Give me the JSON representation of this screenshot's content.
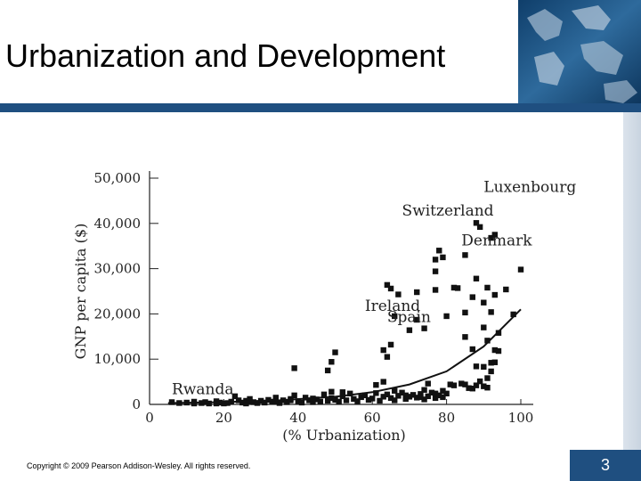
{
  "slide": {
    "title": "Urbanization and Development",
    "copyright": "Copyright © 2009 Pearson Addison-Wesley. All rights reserved.",
    "page_number": "3"
  },
  "colors": {
    "accent": "#1f4f80",
    "marker": "#111111"
  },
  "chart_data": {
    "type": "scatter",
    "title": "",
    "xlabel": "(% Urbanization)",
    "ylabel": "GNP per capita ($)",
    "xlim": [
      0,
      100
    ],
    "ylim": [
      0,
      50000
    ],
    "xticks": [
      0,
      20,
      40,
      60,
      80,
      100
    ],
    "yticks": [
      0,
      10000,
      20000,
      30000,
      40000,
      50000
    ],
    "xtick_labels": [
      "0",
      "20",
      "40",
      "60",
      "80",
      "100"
    ],
    "ytick_labels": [
      "0",
      "10,000",
      "20,000",
      "30,000",
      "40,000",
      "50,000"
    ],
    "grid": false,
    "points": [
      [
        6,
        500
      ],
      [
        8,
        300
      ],
      [
        10,
        400
      ],
      [
        12,
        600
      ],
      [
        14,
        300
      ],
      [
        15,
        500
      ],
      [
        16,
        200
      ],
      [
        18,
        700
      ],
      [
        19,
        400
      ],
      [
        21,
        300
      ],
      [
        22,
        600
      ],
      [
        23,
        1800
      ],
      [
        24,
        900
      ],
      [
        25,
        400
      ],
      [
        26,
        200
      ],
      [
        27,
        1200
      ],
      [
        28,
        500
      ],
      [
        29,
        300
      ],
      [
        30,
        800
      ],
      [
        31,
        400
      ],
      [
        32,
        1000
      ],
      [
        33,
        600
      ],
      [
        34,
        1500
      ],
      [
        35,
        300
      ],
      [
        36,
        900
      ],
      [
        37,
        500
      ],
      [
        38,
        1200
      ],
      [
        39,
        2000
      ],
      [
        40,
        700
      ],
      [
        41,
        400
      ],
      [
        42,
        1500
      ],
      [
        43,
        900
      ],
      [
        44,
        500
      ],
      [
        45,
        1100
      ],
      [
        46,
        600
      ],
      [
        47,
        2200
      ],
      [
        48,
        800
      ],
      [
        49,
        1400
      ],
      [
        50,
        1000
      ],
      [
        51,
        600
      ],
      [
        52,
        1800
      ],
      [
        53,
        900
      ],
      [
        54,
        2400
      ],
      [
        55,
        1200
      ],
      [
        56,
        700
      ],
      [
        57,
        1600
      ],
      [
        58,
        2000
      ],
      [
        59,
        1000
      ],
      [
        60,
        1300
      ],
      [
        61,
        2500
      ],
      [
        62,
        800
      ],
      [
        63,
        1700
      ],
      [
        64,
        2200
      ],
      [
        65,
        1400
      ],
      [
        66,
        900
      ],
      [
        67,
        1900
      ],
      [
        68,
        2600
      ],
      [
        69,
        1200
      ],
      [
        70,
        1700
      ],
      [
        71,
        2100
      ],
      [
        72,
        1500
      ],
      [
        73,
        2300
      ],
      [
        74,
        1100
      ],
      [
        75,
        1800
      ],
      [
        76,
        2600
      ],
      [
        77,
        1400
      ],
      [
        78,
        2000
      ],
      [
        79,
        1600
      ],
      [
        80,
        2400
      ],
      [
        81,
        4400
      ],
      [
        82,
        4200
      ],
      [
        84,
        4600
      ],
      [
        85,
        4400
      ],
      [
        87,
        3500
      ],
      [
        88,
        4200
      ],
      [
        89,
        5100
      ],
      [
        90,
        4000
      ],
      [
        91,
        5800
      ],
      [
        92,
        7300
      ],
      [
        20,
        200
      ],
      [
        12,
        200
      ],
      [
        18,
        200
      ],
      [
        26,
        800
      ],
      [
        34,
        600
      ],
      [
        44,
        1300
      ],
      [
        52,
        2700
      ],
      [
        61,
        4300
      ],
      [
        63,
        5000
      ],
      [
        66,
        3000
      ],
      [
        69,
        2000
      ],
      [
        73,
        1600
      ],
      [
        74,
        3200
      ],
      [
        75,
        4600
      ],
      [
        77,
        2400
      ],
      [
        79,
        3000
      ],
      [
        86,
        3600
      ],
      [
        88,
        8400
      ],
      [
        90,
        8300
      ],
      [
        91,
        3700
      ],
      [
        92,
        9200
      ],
      [
        93,
        12000
      ],
      [
        94,
        11800
      ],
      [
        94,
        15800
      ],
      [
        63,
        12000
      ],
      [
        64,
        10500
      ],
      [
        72,
        18700
      ],
      [
        70,
        16400
      ],
      [
        74,
        16800
      ],
      [
        80,
        19500
      ],
      [
        85,
        14900
      ],
      [
        85,
        20300
      ],
      [
        87,
        12200
      ],
      [
        91,
        14100
      ],
      [
        92,
        20400
      ],
      [
        93,
        9300
      ],
      [
        96,
        25400
      ],
      [
        98,
        19900
      ],
      [
        100,
        29800
      ],
      [
        93,
        24200
      ],
      [
        90,
        22500
      ],
      [
        90,
        17000
      ],
      [
        88,
        27800
      ],
      [
        91,
        25800
      ],
      [
        83,
        25700
      ],
      [
        77,
        25300
      ],
      [
        77,
        29400
      ],
      [
        72,
        24800
      ],
      [
        67,
        24300
      ],
      [
        65,
        25600
      ],
      [
        64,
        26400
      ],
      [
        65,
        13200
      ],
      [
        66,
        19500
      ],
      [
        77,
        32000
      ],
      [
        78,
        34000
      ],
      [
        79,
        32500
      ],
      [
        82,
        25800
      ],
      [
        85,
        33000
      ],
      [
        87,
        23700
      ],
      [
        92,
        36800
      ],
      [
        93,
        37500
      ],
      [
        89,
        39200
      ],
      [
        88,
        40100
      ],
      [
        50,
        11500
      ],
      [
        49,
        9400
      ],
      [
        48,
        7500
      ],
      [
        39,
        8000
      ],
      [
        49,
        2800
      ],
      [
        38,
        900
      ],
      [
        27,
        600
      ]
    ],
    "labeled_points": [
      {
        "label": "Rwanda",
        "x": 6,
        "y": 300
      },
      {
        "label": "Ireland",
        "x": 58,
        "y": 18700
      },
      {
        "label": "Spain",
        "x": 64,
        "y": 16200
      },
      {
        "label": "Denmark",
        "x": 84,
        "y": 33200
      },
      {
        "label": "Switzerland",
        "x": 68,
        "y": 39800
      },
      {
        "label": "Luxenbourg",
        "x": 90,
        "y": 45000
      }
    ],
    "trendline": [
      [
        5,
        300
      ],
      [
        20,
        500
      ],
      [
        35,
        900
      ],
      [
        50,
        1700
      ],
      [
        60,
        2700
      ],
      [
        70,
        4400
      ],
      [
        80,
        7300
      ],
      [
        90,
        12800
      ],
      [
        100,
        21000
      ]
    ]
  }
}
